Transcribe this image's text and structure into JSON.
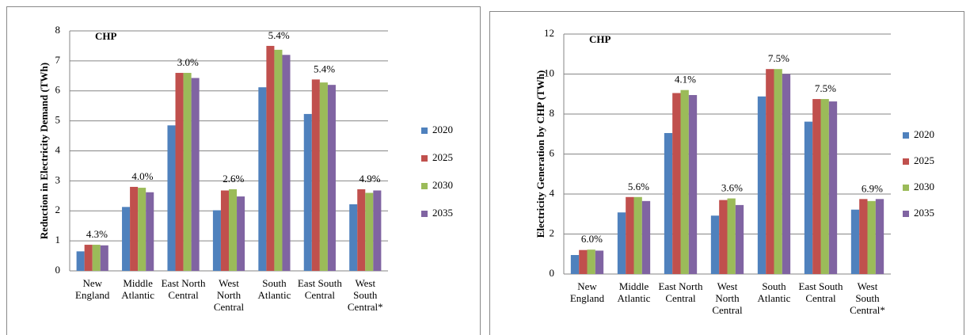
{
  "chart_data": [
    {
      "type": "bar",
      "title": "CHP",
      "y_label": "Reduction in Electricity Demand (TWh)",
      "categories": [
        "New England",
        "Middle Atlantic",
        "East North Central",
        "West North Central",
        "South Atlantic",
        "East South Central",
        "West South Central*"
      ],
      "series": [
        {
          "name": "2020",
          "color": "#4f81bd",
          "values": [
            0.65,
            2.13,
            4.85,
            2.02,
            6.12,
            5.23,
            2.22
          ]
        },
        {
          "name": "2025",
          "color": "#c0504d",
          "values": [
            0.87,
            2.8,
            6.6,
            2.68,
            7.5,
            6.38,
            2.72
          ]
        },
        {
          "name": "2030",
          "color": "#9bbb59",
          "values": [
            0.87,
            2.77,
            6.6,
            2.72,
            7.37,
            6.28,
            2.6
          ]
        },
        {
          "name": "2035",
          "color": "#8064a2",
          "values": [
            0.85,
            2.62,
            6.43,
            2.48,
            7.2,
            6.2,
            2.68
          ]
        }
      ],
      "annotations": [
        "4.3%",
        "4.0%",
        "3.0%",
        "2.6%",
        "5.4%",
        "5.4%",
        "4.9%"
      ],
      "ylim": [
        0,
        8
      ],
      "yticks": [
        0,
        1,
        2,
        3,
        4,
        5,
        6,
        7,
        8
      ],
      "grid": true,
      "legend": "right"
    },
    {
      "type": "bar",
      "title": "CHP",
      "y_label": "Electricity Generation by CHP (TWh)",
      "categories": [
        "New England",
        "Middle Atlantic",
        "East North Central",
        "West North Central",
        "South Atlantic",
        "East South Central",
        "West South Central*"
      ],
      "series": [
        {
          "name": "2020",
          "color": "#4f81bd",
          "values": [
            0.95,
            3.08,
            7.05,
            2.92,
            8.88,
            7.62,
            3.22
          ]
        },
        {
          "name": "2025",
          "color": "#c0504d",
          "values": [
            1.2,
            3.85,
            9.05,
            3.7,
            10.25,
            8.75,
            3.75
          ]
        },
        {
          "name": "2030",
          "color": "#9bbb59",
          "values": [
            1.22,
            3.85,
            9.2,
            3.78,
            10.25,
            8.75,
            3.65
          ]
        },
        {
          "name": "2035",
          "color": "#8064a2",
          "values": [
            1.17,
            3.65,
            8.95,
            3.45,
            10.0,
            8.63,
            3.75
          ]
        }
      ],
      "annotations": [
        "6.0%",
        "5.6%",
        "4.1%",
        "3.6%",
        "7.5%",
        "7.5%",
        "6.9%"
      ],
      "ylim": [
        0,
        12
      ],
      "yticks": [
        0,
        2,
        4,
        6,
        8,
        10,
        12
      ],
      "grid": true,
      "legend": "right"
    }
  ]
}
